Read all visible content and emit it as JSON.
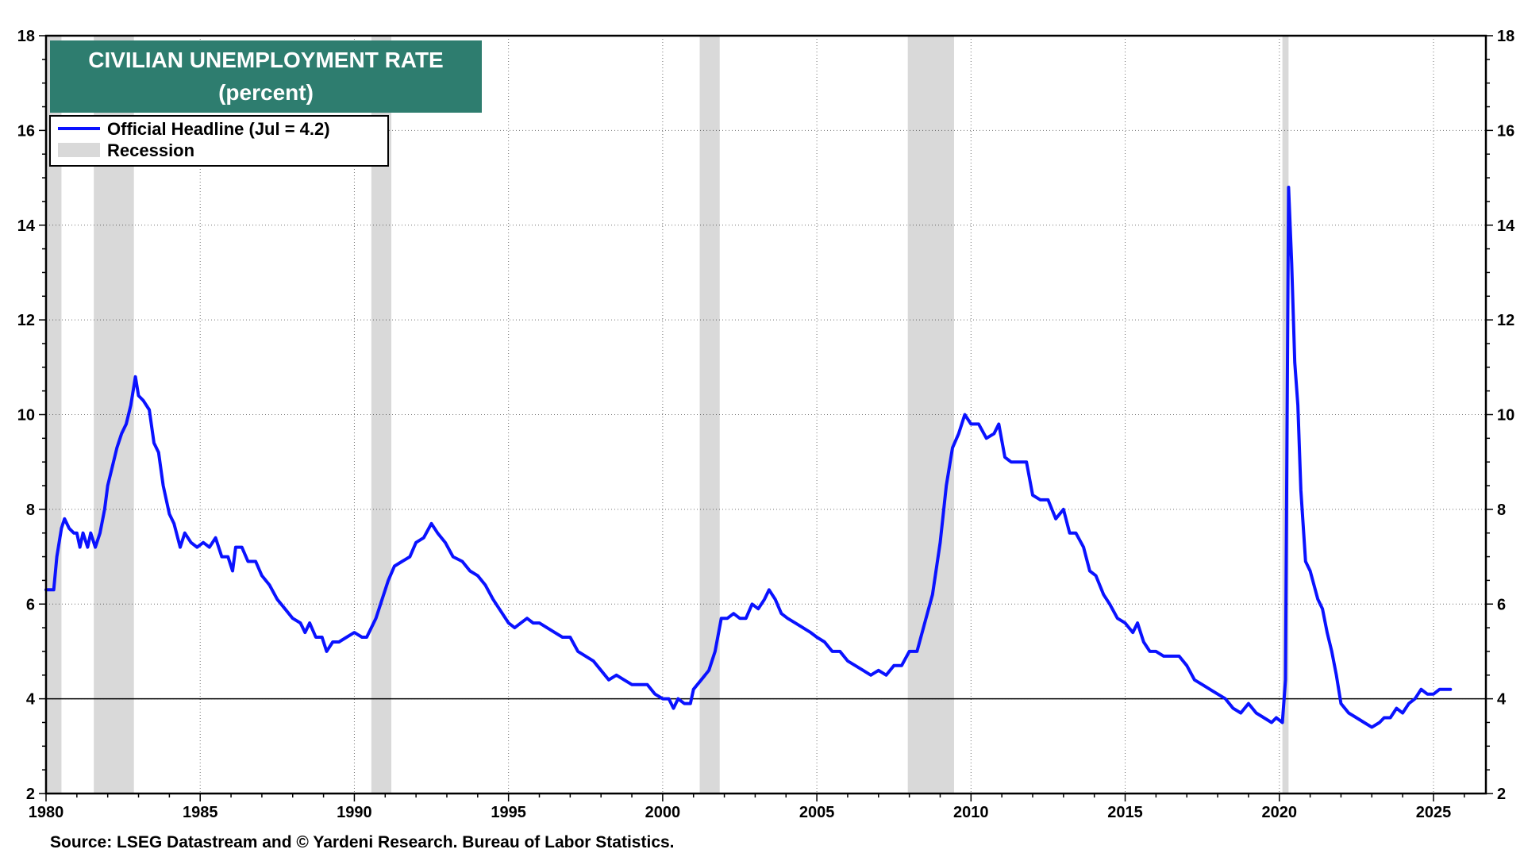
{
  "chart_data": {
    "type": "line",
    "title": "CIVILIAN UNEMPLOYMENT RATE",
    "subtitle": "(percent)",
    "title_bg_color": "#2e7d6f",
    "series": [
      {
        "name": "Official Headline (Jul = 4.2)",
        "color": "#0a12ff",
        "points": [
          [
            1980.0,
            6.3
          ],
          [
            1980.25,
            6.3
          ],
          [
            1980.35,
            7.0
          ],
          [
            1980.5,
            7.6
          ],
          [
            1980.6,
            7.8
          ],
          [
            1980.75,
            7.6
          ],
          [
            1980.9,
            7.5
          ],
          [
            1981.0,
            7.5
          ],
          [
            1981.1,
            7.2
          ],
          [
            1981.2,
            7.5
          ],
          [
            1981.35,
            7.2
          ],
          [
            1981.45,
            7.5
          ],
          [
            1981.6,
            7.2
          ],
          [
            1981.75,
            7.5
          ],
          [
            1981.9,
            8.0
          ],
          [
            1982.0,
            8.5
          ],
          [
            1982.15,
            8.9
          ],
          [
            1982.3,
            9.3
          ],
          [
            1982.45,
            9.6
          ],
          [
            1982.6,
            9.8
          ],
          [
            1982.75,
            10.2
          ],
          [
            1982.9,
            10.8
          ],
          [
            1983.0,
            10.4
          ],
          [
            1983.15,
            10.3
          ],
          [
            1983.35,
            10.1
          ],
          [
            1983.5,
            9.4
          ],
          [
            1983.65,
            9.2
          ],
          [
            1983.8,
            8.5
          ],
          [
            1984.0,
            7.9
          ],
          [
            1984.15,
            7.7
          ],
          [
            1984.35,
            7.2
          ],
          [
            1984.5,
            7.5
          ],
          [
            1984.7,
            7.3
          ],
          [
            1984.9,
            7.2
          ],
          [
            1985.1,
            7.3
          ],
          [
            1985.3,
            7.2
          ],
          [
            1985.5,
            7.4
          ],
          [
            1985.7,
            7.0
          ],
          [
            1985.9,
            7.0
          ],
          [
            1986.05,
            6.7
          ],
          [
            1986.15,
            7.2
          ],
          [
            1986.35,
            7.2
          ],
          [
            1986.55,
            6.9
          ],
          [
            1986.8,
            6.9
          ],
          [
            1987.0,
            6.6
          ],
          [
            1987.25,
            6.4
          ],
          [
            1987.5,
            6.1
          ],
          [
            1987.75,
            5.9
          ],
          [
            1988.0,
            5.7
          ],
          [
            1988.25,
            5.6
          ],
          [
            1988.4,
            5.4
          ],
          [
            1988.55,
            5.6
          ],
          [
            1988.75,
            5.3
          ],
          [
            1988.95,
            5.3
          ],
          [
            1989.1,
            5.0
          ],
          [
            1989.3,
            5.2
          ],
          [
            1989.5,
            5.2
          ],
          [
            1989.75,
            5.3
          ],
          [
            1990.0,
            5.4
          ],
          [
            1990.25,
            5.3
          ],
          [
            1990.4,
            5.3
          ],
          [
            1990.55,
            5.5
          ],
          [
            1990.7,
            5.7
          ],
          [
            1990.9,
            6.1
          ],
          [
            1991.1,
            6.5
          ],
          [
            1991.3,
            6.8
          ],
          [
            1991.55,
            6.9
          ],
          [
            1991.8,
            7.0
          ],
          [
            1992.0,
            7.3
          ],
          [
            1992.25,
            7.4
          ],
          [
            1992.5,
            7.7
          ],
          [
            1992.7,
            7.5
          ],
          [
            1992.95,
            7.3
          ],
          [
            1993.2,
            7.0
          ],
          [
            1993.5,
            6.9
          ],
          [
            1993.75,
            6.7
          ],
          [
            1994.0,
            6.6
          ],
          [
            1994.25,
            6.4
          ],
          [
            1994.5,
            6.1
          ],
          [
            1994.8,
            5.8
          ],
          [
            1995.0,
            5.6
          ],
          [
            1995.2,
            5.5
          ],
          [
            1995.4,
            5.6
          ],
          [
            1995.6,
            5.7
          ],
          [
            1995.8,
            5.6
          ],
          [
            1996.0,
            5.6
          ],
          [
            1996.25,
            5.5
          ],
          [
            1996.5,
            5.4
          ],
          [
            1996.75,
            5.3
          ],
          [
            1997.0,
            5.3
          ],
          [
            1997.25,
            5.0
          ],
          [
            1997.5,
            4.9
          ],
          [
            1997.75,
            4.8
          ],
          [
            1998.0,
            4.6
          ],
          [
            1998.25,
            4.4
          ],
          [
            1998.5,
            4.5
          ],
          [
            1998.75,
            4.4
          ],
          [
            1999.0,
            4.3
          ],
          [
            1999.25,
            4.3
          ],
          [
            1999.5,
            4.3
          ],
          [
            1999.75,
            4.1
          ],
          [
            2000.0,
            4.0
          ],
          [
            2000.2,
            4.0
          ],
          [
            2000.35,
            3.8
          ],
          [
            2000.5,
            4.0
          ],
          [
            2000.7,
            3.9
          ],
          [
            2000.9,
            3.9
          ],
          [
            2001.0,
            4.2
          ],
          [
            2001.25,
            4.4
          ],
          [
            2001.5,
            4.6
          ],
          [
            2001.7,
            5.0
          ],
          [
            2001.9,
            5.7
          ],
          [
            2002.1,
            5.7
          ],
          [
            2002.3,
            5.8
          ],
          [
            2002.5,
            5.7
          ],
          [
            2002.7,
            5.7
          ],
          [
            2002.9,
            6.0
          ],
          [
            2003.1,
            5.9
          ],
          [
            2003.3,
            6.1
          ],
          [
            2003.45,
            6.3
          ],
          [
            2003.65,
            6.1
          ],
          [
            2003.85,
            5.8
          ],
          [
            2004.05,
            5.7
          ],
          [
            2004.3,
            5.6
          ],
          [
            2004.55,
            5.5
          ],
          [
            2004.8,
            5.4
          ],
          [
            2005.0,
            5.3
          ],
          [
            2005.25,
            5.2
          ],
          [
            2005.5,
            5.0
          ],
          [
            2005.75,
            5.0
          ],
          [
            2006.0,
            4.8
          ],
          [
            2006.25,
            4.7
          ],
          [
            2006.5,
            4.6
          ],
          [
            2006.75,
            4.5
          ],
          [
            2007.0,
            4.6
          ],
          [
            2007.25,
            4.5
          ],
          [
            2007.5,
            4.7
          ],
          [
            2007.75,
            4.7
          ],
          [
            2008.0,
            5.0
          ],
          [
            2008.25,
            5.0
          ],
          [
            2008.5,
            5.6
          ],
          [
            2008.75,
            6.2
          ],
          [
            2009.0,
            7.3
          ],
          [
            2009.2,
            8.5
          ],
          [
            2009.4,
            9.3
          ],
          [
            2009.6,
            9.6
          ],
          [
            2009.8,
            10.0
          ],
          [
            2010.0,
            9.8
          ],
          [
            2010.25,
            9.8
          ],
          [
            2010.5,
            9.5
          ],
          [
            2010.75,
            9.6
          ],
          [
            2010.9,
            9.8
          ],
          [
            2011.1,
            9.1
          ],
          [
            2011.3,
            9.0
          ],
          [
            2011.55,
            9.0
          ],
          [
            2011.8,
            9.0
          ],
          [
            2012.0,
            8.3
          ],
          [
            2012.25,
            8.2
          ],
          [
            2012.5,
            8.2
          ],
          [
            2012.75,
            7.8
          ],
          [
            2013.0,
            8.0
          ],
          [
            2013.2,
            7.5
          ],
          [
            2013.4,
            7.5
          ],
          [
            2013.65,
            7.2
          ],
          [
            2013.85,
            6.7
          ],
          [
            2014.05,
            6.6
          ],
          [
            2014.3,
            6.2
          ],
          [
            2014.5,
            6.0
          ],
          [
            2014.75,
            5.7
          ],
          [
            2015.0,
            5.6
          ],
          [
            2015.25,
            5.4
          ],
          [
            2015.4,
            5.6
          ],
          [
            2015.6,
            5.2
          ],
          [
            2015.8,
            5.0
          ],
          [
            2016.0,
            5.0
          ],
          [
            2016.25,
            4.9
          ],
          [
            2016.5,
            4.9
          ],
          [
            2016.75,
            4.9
          ],
          [
            2017.0,
            4.7
          ],
          [
            2017.25,
            4.4
          ],
          [
            2017.5,
            4.3
          ],
          [
            2017.75,
            4.2
          ],
          [
            2018.0,
            4.1
          ],
          [
            2018.25,
            4.0
          ],
          [
            2018.5,
            3.8
          ],
          [
            2018.75,
            3.7
          ],
          [
            2019.0,
            3.9
          ],
          [
            2019.25,
            3.7
          ],
          [
            2019.5,
            3.6
          ],
          [
            2019.75,
            3.5
          ],
          [
            2019.9,
            3.6
          ],
          [
            2020.1,
            3.5
          ],
          [
            2020.2,
            4.4
          ],
          [
            2020.3,
            14.8
          ],
          [
            2020.4,
            13.2
          ],
          [
            2020.5,
            11.1
          ],
          [
            2020.6,
            10.2
          ],
          [
            2020.7,
            8.4
          ],
          [
            2020.85,
            6.9
          ],
          [
            2021.0,
            6.7
          ],
          [
            2021.25,
            6.1
          ],
          [
            2021.4,
            5.9
          ],
          [
            2021.55,
            5.4
          ],
          [
            2021.7,
            5.0
          ],
          [
            2021.85,
            4.5
          ],
          [
            2022.0,
            3.9
          ],
          [
            2022.25,
            3.7
          ],
          [
            2022.5,
            3.6
          ],
          [
            2022.75,
            3.5
          ],
          [
            2023.0,
            3.4
          ],
          [
            2023.25,
            3.5
          ],
          [
            2023.4,
            3.6
          ],
          [
            2023.6,
            3.6
          ],
          [
            2023.8,
            3.8
          ],
          [
            2024.0,
            3.7
          ],
          [
            2024.2,
            3.9
          ],
          [
            2024.4,
            4.0
          ],
          [
            2024.6,
            4.2
          ],
          [
            2024.8,
            4.1
          ],
          [
            2025.0,
            4.1
          ],
          [
            2025.2,
            4.2
          ],
          [
            2025.4,
            4.2
          ],
          [
            2025.55,
            4.2
          ]
        ]
      }
    ],
    "recessions": [
      [
        1980.0,
        1980.5
      ],
      [
        1981.55,
        1982.85
      ],
      [
        1990.55,
        1991.2
      ],
      [
        2001.2,
        2001.85
      ],
      [
        2007.95,
        2009.45
      ],
      [
        2020.1,
        2020.3
      ]
    ],
    "recession_color": "#d9d9d9",
    "legend": [
      {
        "label": "Official Headline (Jul = 4.2)",
        "type": "line",
        "color": "#0a12ff"
      },
      {
        "label": "Recession",
        "type": "band",
        "color": "#d9d9d9"
      }
    ],
    "legend_position": "top-left",
    "xlim": [
      1980,
      2026.7
    ],
    "ylim": [
      2,
      18
    ],
    "x_ticks": [
      1980,
      1985,
      1990,
      1995,
      2000,
      2005,
      2010,
      2015,
      2020,
      2025
    ],
    "y_ticks": [
      2,
      4,
      6,
      8,
      10,
      12,
      14,
      16,
      18
    ],
    "reference_line": 4,
    "grid": true,
    "source": "Source: LSEG Datastream and © Yardeni Research. Bureau of Labor Statistics."
  }
}
